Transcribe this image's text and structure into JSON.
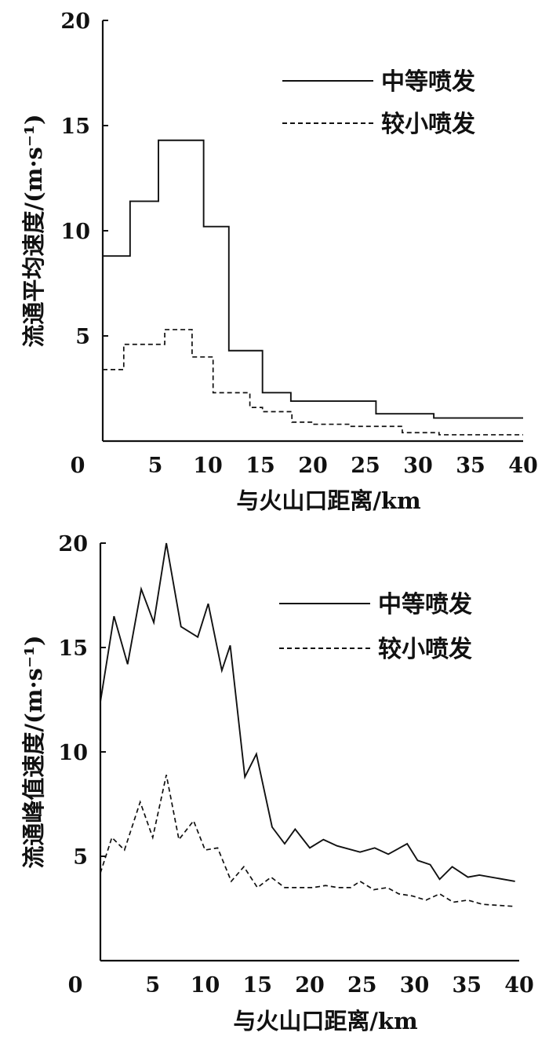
{
  "chart_data": [
    {
      "type": "line",
      "step": true,
      "xlabel": "与火山口距离/km",
      "ylabel": "流通平均速度/(m·s⁻¹)",
      "xlim": [
        0,
        40
      ],
      "ylim": [
        0,
        20
      ],
      "xticks": [
        "0",
        "5",
        "10",
        "15",
        "20",
        "25",
        "30",
        "35",
        "40"
      ],
      "yticks": [
        "5",
        "10",
        "15",
        "20"
      ],
      "legend_position": "top-right",
      "series": [
        {
          "name": "中等喷发",
          "style": "solid",
          "x": [
            0,
            2.6,
            5.3,
            9.6,
            12,
            15.2,
            17.9,
            26,
            31.5,
            40
          ],
          "y": [
            8.8,
            11.4,
            14.3,
            10.2,
            4.3,
            2.3,
            1.9,
            1.3,
            1.1,
            1.1
          ]
        },
        {
          "name": "较小喷发",
          "style": "dashed",
          "x": [
            0,
            2,
            5.9,
            8.5,
            10.5,
            14,
            15.2,
            18,
            20,
            23.5,
            28.5,
            32,
            40
          ],
          "y": [
            3.4,
            4.6,
            5.3,
            4.0,
            2.3,
            1.6,
            1.4,
            0.9,
            0.8,
            0.7,
            0.4,
            0.3,
            0.3
          ]
        }
      ]
    },
    {
      "type": "line",
      "xlabel": "与火山口距离/km",
      "ylabel": "流通峰值速度/(m·s⁻¹)",
      "xlim": [
        0,
        40
      ],
      "ylim": [
        0,
        20
      ],
      "xticks": [
        "0",
        "5",
        "10",
        "15",
        "20",
        "25",
        "30",
        "35",
        "40"
      ],
      "yticks": [
        "5",
        "10",
        "15",
        "20"
      ],
      "legend_position": "top-right",
      "series": [
        {
          "name": "中等喷发",
          "style": "solid",
          "x": [
            0,
            1.3,
            2.6,
            3.9,
            5.1,
            6.3,
            7.7,
            9.3,
            10.3,
            11.6,
            12.4,
            13.8,
            14.9,
            16.4,
            17.6,
            18.6,
            20,
            21.3,
            22.6,
            24.8,
            26.2,
            27.5,
            29.3,
            30.3,
            31.5,
            32.4,
            33.6,
            35.1,
            36.2,
            39.6
          ],
          "y": [
            12.4,
            16.5,
            14.2,
            17.8,
            16.2,
            20.0,
            16.0,
            15.5,
            17.1,
            13.9,
            15.1,
            8.8,
            9.9,
            6.4,
            5.6,
            6.3,
            5.4,
            5.8,
            5.5,
            5.2,
            5.4,
            5.1,
            5.6,
            4.8,
            4.6,
            3.9,
            4.5,
            4.0,
            4.1,
            3.8
          ]
        },
        {
          "name": "较小喷发",
          "style": "dashed",
          "x": [
            0,
            1.1,
            2.3,
            3.8,
            5.0,
            6.3,
            7.5,
            8.9,
            10.0,
            11.2,
            12.5,
            13.7,
            15.0,
            16.3,
            17.6,
            18.9,
            20.3,
            21.5,
            22.7,
            23.9,
            24.8,
            26.1,
            27.4,
            28.5,
            29.8,
            31.1,
            32.4,
            33.7,
            35.1,
            36.5,
            39.5
          ],
          "y": [
            4.2,
            5.9,
            5.3,
            7.6,
            5.9,
            8.9,
            5.8,
            6.7,
            5.3,
            5.4,
            3.8,
            4.5,
            3.5,
            4.0,
            3.5,
            3.5,
            3.5,
            3.6,
            3.5,
            3.5,
            3.8,
            3.4,
            3.5,
            3.2,
            3.1,
            2.9,
            3.2,
            2.8,
            2.9,
            2.7,
            2.6
          ]
        }
      ]
    }
  ]
}
